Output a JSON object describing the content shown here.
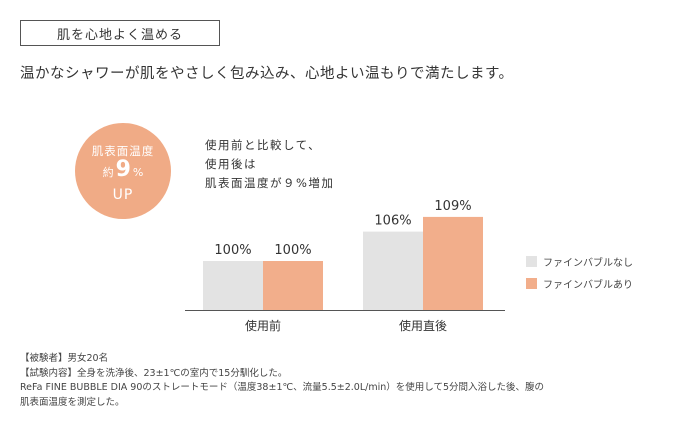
{
  "header": {
    "title": "肌を心地よく温める",
    "headline": "温かなシャワーが肌をやさしく包み込み、心地よい温もりで満たします。"
  },
  "badge": {
    "line1": "肌表面温度",
    "prefix": "約",
    "number": "9",
    "unit": "%",
    "line3": "UP"
  },
  "note": {
    "lines": [
      "使用前と比較して、",
      "使用後は",
      "肌表面温度が９%増加"
    ]
  },
  "colors": {
    "without": "#e3e3e3",
    "with": "#f2ae8b",
    "badge": "#f0ab86",
    "axis": "#555555"
  },
  "chart_data": {
    "type": "bar",
    "categories": [
      "使用前",
      "使用直後"
    ],
    "series": [
      {
        "name": "ファインバブルなし",
        "values": [
          100,
          106
        ],
        "labels": [
          "100%",
          "106%"
        ]
      },
      {
        "name": "ファインバブルあり",
        "values": [
          100,
          109
        ],
        "labels": [
          "100%",
          "109%"
        ]
      }
    ],
    "value_unit": "%"
  },
  "footer": {
    "lines": [
      "【被験者】男女20名",
      "【試験内容】全身を洗浄後、23±1℃の室内で15分馴化した。",
      "ReFa FINE BUBBLE DIA 90のストレートモード（温度38±1℃、流量5.5±2.0L/min）を使用して5分間入浴した後、腹の",
      "肌表面温度を測定した。"
    ]
  }
}
